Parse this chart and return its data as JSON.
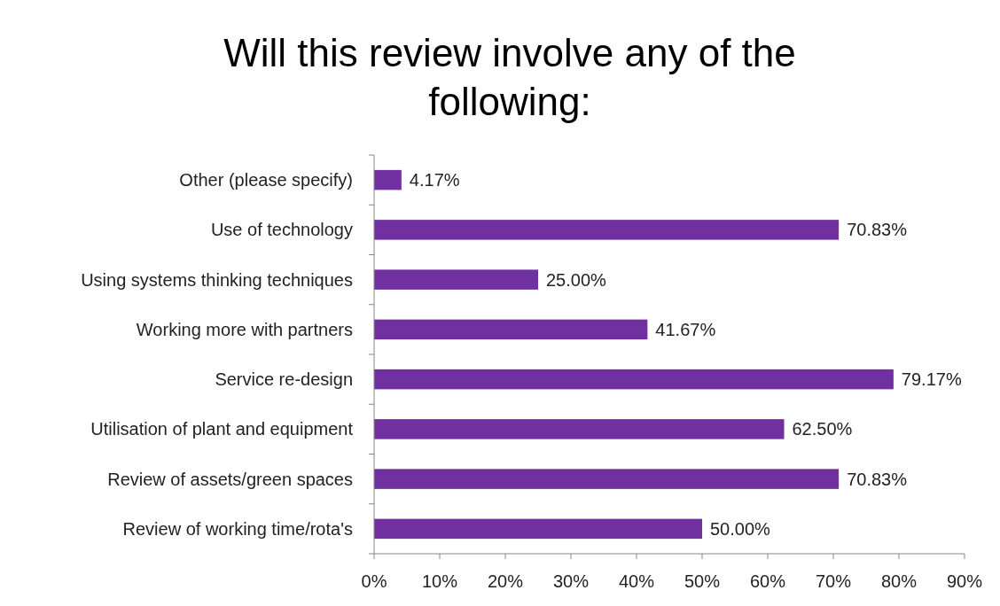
{
  "chart_data": {
    "type": "bar",
    "orientation": "horizontal",
    "title": "Will this review involve any of the following:",
    "categories": [
      "Other (please specify)",
      "Use of technology",
      "Using systems thinking techniques",
      "Working more with partners",
      "Service re-design",
      "Utilisation of plant and equipment",
      "Review of assets/green spaces",
      "Review of working time/rota's"
    ],
    "values": [
      4.17,
      70.83,
      25.0,
      41.67,
      79.17,
      62.5,
      70.83,
      50.0
    ],
    "value_labels": [
      "4.17%",
      "70.83%",
      "25.00%",
      "41.67%",
      "79.17%",
      "62.50%",
      "70.83%",
      "50.00%"
    ],
    "color": "#7030a0",
    "xlim": [
      0,
      90
    ],
    "xticks": [
      {
        "value": 0,
        "label": "0%"
      },
      {
        "value": 10,
        "label": "10%"
      },
      {
        "value": 20,
        "label": "20%"
      },
      {
        "value": 30,
        "label": "30%"
      },
      {
        "value": 40,
        "label": "40%"
      },
      {
        "value": 50,
        "label": "50%"
      },
      {
        "value": 60,
        "label": "60%"
      },
      {
        "value": 70,
        "label": "70%"
      },
      {
        "value": 80,
        "label": "80%"
      },
      {
        "value": 90,
        "label": "90%"
      }
    ],
    "grid": false
  }
}
